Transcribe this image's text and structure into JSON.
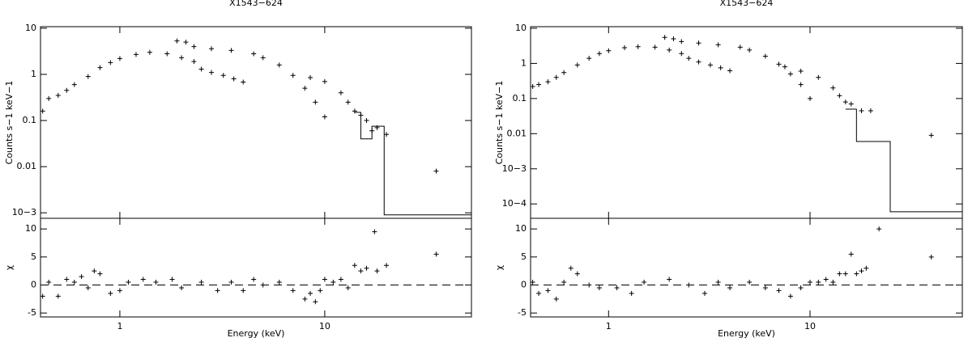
{
  "chart_data": [
    {
      "type": "scatter",
      "title": "X1543−624",
      "ylabel": "Counts s−1 keV−1",
      "log_x": true,
      "log_y": true,
      "xlim": [
        0.41,
        52
      ],
      "ylim": [
        0.00076,
        10.8
      ],
      "xticks": [
        1,
        10
      ],
      "yticks": [
        10,
        1,
        0.1,
        0.01,
        {
          "value": 0.001,
          "label": "10−3"
        }
      ],
      "series": [
        {
          "marker": "cross",
          "x": [
            0.42,
            0.45,
            0.5,
            0.55,
            0.6,
            0.7,
            0.8,
            0.9,
            1.0,
            1.2,
            1.4,
            1.7,
            2.0,
            2.3,
            2.5,
            2.8,
            3.2,
            3.6,
            4.0
          ],
          "values": [
            0.16,
            0.3,
            0.35,
            0.45,
            0.6,
            0.9,
            1.4,
            1.8,
            2.2,
            2.7,
            3.0,
            2.8,
            2.3,
            1.9,
            1.3,
            1.1,
            0.95,
            0.8,
            0.68
          ]
        },
        {
          "marker": "cross",
          "x": [
            1.9,
            2.1,
            2.3,
            2.8,
            3.5,
            4.5,
            5,
            6,
            7,
            8,
            9,
            10
          ],
          "values": [
            5.3,
            5.0,
            4.0,
            3.6,
            3.3,
            2.8,
            2.3,
            1.6,
            0.95,
            0.5,
            0.25,
            0.12
          ]
        },
        {
          "marker": "cross",
          "x": [
            8.5,
            10,
            12,
            13,
            14,
            15,
            16,
            17,
            18,
            20,
            35
          ],
          "values": [
            0.85,
            0.7,
            0.4,
            0.25,
            0.16,
            0.13,
            0.1,
            0.06,
            0.07,
            0.05,
            0.008
          ]
        },
        {
          "marker": "line",
          "x": [
            14,
            15,
            15,
            17,
            17,
            19.5,
            19.5,
            52
          ],
          "values": [
            0.15,
            0.15,
            0.04,
            0.04,
            0.075,
            0.075,
            0.0009,
            0.0009
          ]
        }
      ]
    },
    {
      "type": "scatter",
      "xlabel": "Energy (keV)",
      "ylabel": "χ",
      "log_x": true,
      "log_y": false,
      "xlim": [
        0.41,
        52
      ],
      "ylim": [
        -5.7,
        11.9
      ],
      "xticks": [
        1,
        10
      ],
      "yticks": [
        -5,
        0,
        5,
        10
      ],
      "hline": 0,
      "series": [
        {
          "marker": "cross",
          "x": [
            0.42,
            0.45,
            0.5,
            0.55,
            0.6,
            0.65,
            0.7,
            0.75,
            0.8,
            0.9,
            1.0,
            1.1,
            1.3,
            1.5,
            1.8,
            2,
            2.5,
            3,
            3.5,
            4,
            4.5,
            5,
            6,
            7,
            8,
            8.5,
            9,
            9.5,
            10,
            11,
            12,
            13,
            14,
            15,
            16,
            17.5,
            18,
            20,
            35
          ],
          "values": [
            -2,
            0.5,
            -2,
            1,
            0.5,
            1.5,
            -0.5,
            2.5,
            2,
            -1.5,
            -1,
            0.5,
            1,
            0.5,
            1,
            -0.5,
            0.5,
            -1,
            0.5,
            -1,
            1,
            0,
            0.5,
            -1,
            -2.5,
            -1.5,
            -3,
            -1,
            1,
            0.5,
            1,
            -0.5,
            3.5,
            2.5,
            3,
            9.5,
            2.5,
            3.5,
            5.5
          ]
        }
      ]
    },
    {
      "type": "scatter",
      "title": "X1543−624",
      "ylabel": "Counts s−1 keV−1",
      "log_x": true,
      "log_y": true,
      "xlim": [
        0.41,
        57
      ],
      "ylim": [
        3.9e-05,
        11.1
      ],
      "xticks": [
        1,
        10
      ],
      "yticks": [
        10,
        1,
        0.1,
        0.01,
        {
          "value": 0.001,
          "label": "10−3"
        },
        {
          "value": 0.0001,
          "label": "10−4"
        }
      ],
      "series": [
        {
          "marker": "cross",
          "x": [
            0.42,
            0.45,
            0.5,
            0.55,
            0.6,
            0.7,
            0.8,
            0.9,
            1.0,
            1.2,
            1.4,
            1.7,
            2.0,
            2.3,
            2.5,
            2.8,
            3.2,
            3.6,
            4.0
          ],
          "values": [
            0.22,
            0.25,
            0.3,
            0.4,
            0.55,
            0.9,
            1.4,
            1.9,
            2.3,
            2.8,
            3.0,
            2.9,
            2.4,
            1.9,
            1.4,
            1.1,
            0.9,
            0.75,
            0.62
          ]
        },
        {
          "marker": "cross",
          "x": [
            1.9,
            2.1,
            2.3,
            2.8,
            3.5,
            4.5,
            5,
            6,
            7,
            8,
            9,
            10
          ],
          "values": [
            5.5,
            5.0,
            4.2,
            3.8,
            3.4,
            2.9,
            2.4,
            1.6,
            0.95,
            0.5,
            0.25,
            0.1
          ]
        },
        {
          "marker": "cross",
          "x": [
            7.5,
            9,
            11,
            13,
            14,
            15,
            16,
            18,
            20,
            40
          ],
          "values": [
            0.8,
            0.6,
            0.4,
            0.2,
            0.12,
            0.08,
            0.07,
            0.045,
            0.045,
            0.009
          ]
        },
        {
          "marker": "line",
          "x": [
            15,
            17,
            17,
            25,
            25,
            57
          ],
          "values": [
            0.05,
            0.05,
            0.006,
            0.006,
            6e-05,
            6e-05
          ]
        }
      ]
    },
    {
      "type": "scatter",
      "xlabel": "Energy (keV)",
      "ylabel": "χ",
      "log_x": true,
      "log_y": false,
      "xlim": [
        0.41,
        57
      ],
      "ylim": [
        -5.7,
        11.9
      ],
      "xticks": [
        1,
        10
      ],
      "yticks": [
        -5,
        0,
        5,
        10
      ],
      "hline": 0,
      "series": [
        {
          "marker": "cross",
          "x": [
            0.42,
            0.45,
            0.5,
            0.55,
            0.6,
            0.65,
            0.7,
            0.8,
            0.9,
            1.1,
            1.3,
            1.5,
            2,
            2.5,
            3,
            3.5,
            4,
            5,
            6,
            7,
            8,
            9,
            10,
            11,
            12,
            13,
            14,
            15,
            16,
            17,
            18,
            19,
            22,
            40
          ],
          "values": [
            0.5,
            -1.5,
            -1,
            -2.5,
            0.5,
            3,
            2,
            0,
            -0.5,
            -0.5,
            -1.5,
            0.5,
            1,
            0,
            -1.5,
            0.5,
            -0.5,
            0.5,
            -0.5,
            -1,
            -2,
            -0.5,
            0.5,
            0.5,
            1,
            0.5,
            2,
            2,
            5.5,
            2,
            2.5,
            3,
            10,
            5
          ]
        }
      ]
    }
  ]
}
